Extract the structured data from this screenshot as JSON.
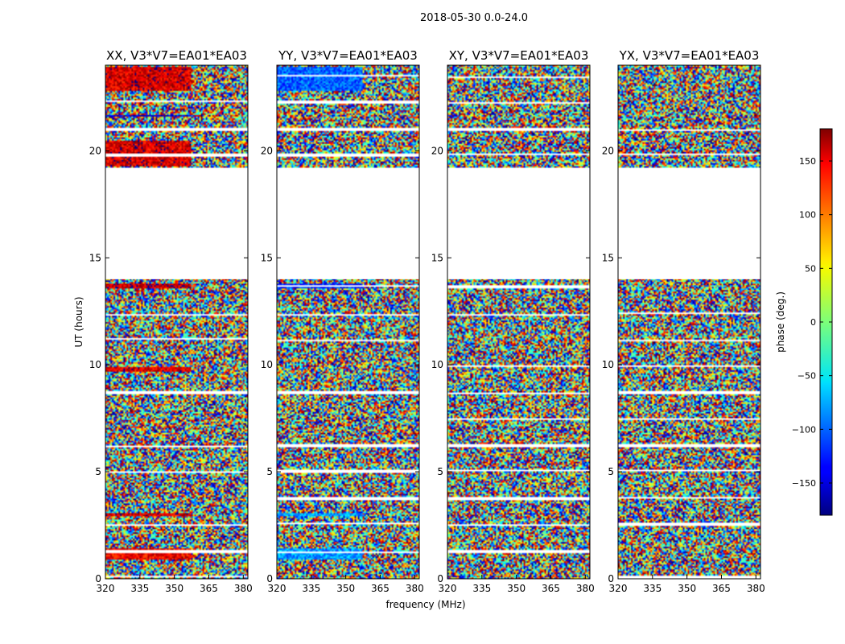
{
  "figure_title": "2018-05-30 0.0-24.0",
  "colorbar": {
    "label": "phase (deg.)",
    "range": [
      -180,
      180
    ],
    "ticks": [
      "150",
      "100",
      "50",
      "0",
      "−50",
      "−100",
      "−150"
    ],
    "tick_values": [
      150,
      100,
      50,
      0,
      -50,
      -100,
      -150
    ],
    "colormap": "jet"
  },
  "chart_data": [
    {
      "type": "heatmap",
      "title": "XX, V3*V7=EA01*EA03",
      "xlabel": "",
      "ylabel": "UT (hours)",
      "xlim": [
        320,
        382
      ],
      "ylim": [
        0,
        24
      ],
      "x_ticks": [
        "320",
        "335",
        "350",
        "365",
        "380"
      ],
      "y_ticks": [
        "0",
        "5",
        "10",
        "15",
        "20"
      ],
      "value": "phase (deg.)",
      "coherent_bands": [
        {
          "ut": [
            0.9,
            1.4
          ],
          "phase_deg": 140
        },
        {
          "ut": [
            2.9,
            3.1
          ],
          "phase_deg": 150
        },
        {
          "ut": [
            9.7,
            9.9
          ],
          "phase_deg": 150
        },
        {
          "ut": [
            13.6,
            13.8
          ],
          "phase_deg": 160
        },
        {
          "ut": [
            19.3,
            20.5
          ],
          "phase_deg": 150
        },
        {
          "ut": [
            21.6,
            21.7
          ],
          "phase_deg": -150
        },
        {
          "ut": [
            22.8,
            23.9
          ],
          "phase_deg": 150
        }
      ],
      "data_gap_ut": [
        14.0,
        19.2
      ]
    },
    {
      "type": "heatmap",
      "title": "YY, V3*V7=EA01*EA03",
      "xlabel": "frequency (MHz)",
      "ylabel": "",
      "xlim": [
        320,
        382
      ],
      "ylim": [
        0,
        24
      ],
      "x_ticks": [
        "320",
        "335",
        "350",
        "365",
        "380"
      ],
      "y_ticks": [
        "0",
        "5",
        "10",
        "15",
        "20"
      ],
      "value": "phase (deg.)",
      "coherent_bands": [
        {
          "ut": [
            0.9,
            1.4
          ],
          "phase_deg": -80
        },
        {
          "ut": [
            2.9,
            3.1
          ],
          "phase_deg": -80
        },
        {
          "ut": [
            13.6,
            13.8
          ],
          "phase_deg": -120
        },
        {
          "ut": [
            22.8,
            23.9
          ],
          "phase_deg": -100
        }
      ],
      "data_gap_ut": [
        14.0,
        19.2
      ]
    },
    {
      "type": "heatmap",
      "title": "XY, V3*V7=EA01*EA03",
      "xlabel": "",
      "ylabel": "",
      "xlim": [
        320,
        382
      ],
      "ylim": [
        0,
        24
      ],
      "x_ticks": [
        "320",
        "335",
        "350",
        "365",
        "380"
      ],
      "y_ticks": [
        "0",
        "5",
        "10",
        "15",
        "20"
      ],
      "value": "phase (deg.)",
      "coherent_bands": [],
      "data_gap_ut": [
        14.0,
        19.2
      ]
    },
    {
      "type": "heatmap",
      "title": "YX, V3*V7=EA01*EA03",
      "xlabel": "",
      "ylabel": "",
      "xlim": [
        320,
        382
      ],
      "ylim": [
        0,
        24
      ],
      "x_ticks": [
        "320",
        "335",
        "350",
        "365",
        "380"
      ],
      "y_ticks": [
        "0",
        "5",
        "10",
        "15",
        "20"
      ],
      "value": "phase (deg.)",
      "coherent_bands": [],
      "data_gap_ut": [
        14.0,
        19.2
      ]
    }
  ]
}
